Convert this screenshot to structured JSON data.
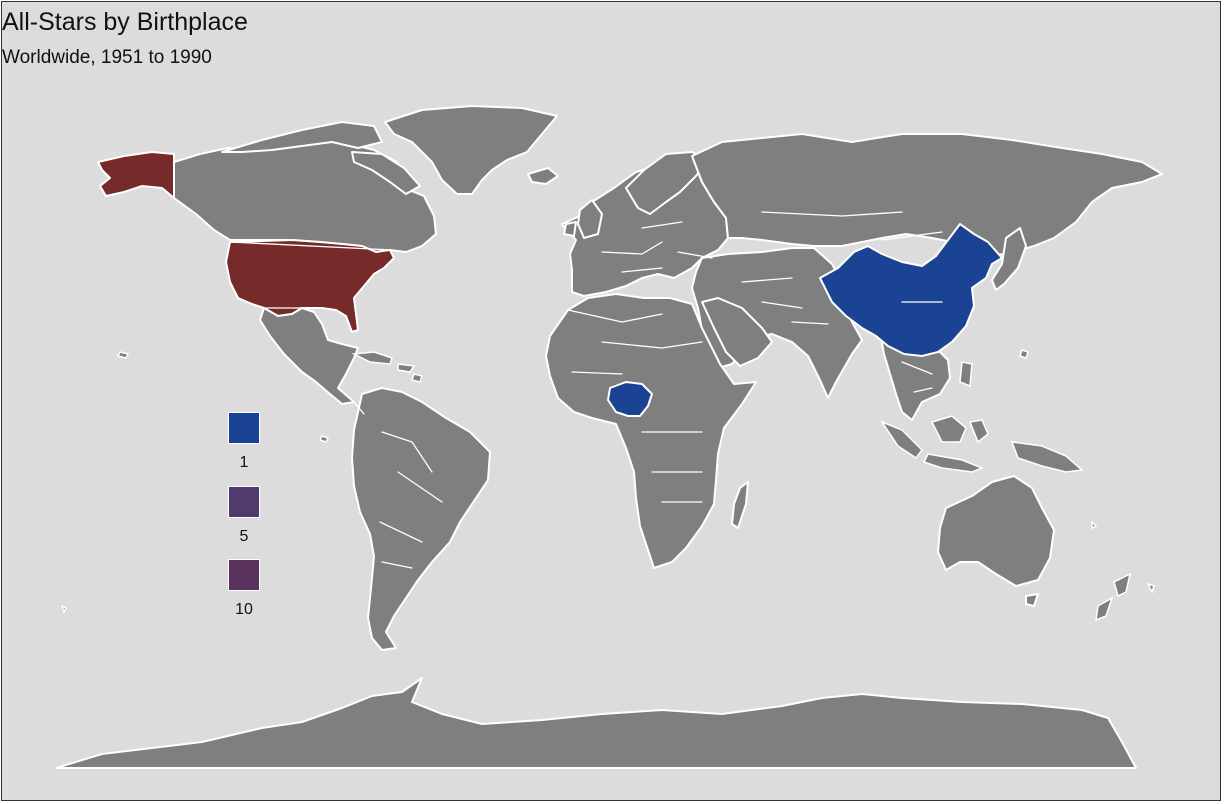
{
  "title": "All-Stars by Birthplace",
  "subtitle": "Worldwide, 1951 to 1990",
  "colors": {
    "background": "#dcdcdc",
    "land": "#7f7f7f",
    "border": "#ffffff",
    "level_1": "#1b4393",
    "level_5": "#533a6e",
    "level_10": "#5a325e",
    "usa": "#772a2a"
  },
  "legend": {
    "items": [
      {
        "label": "1",
        "color": "#1b4393"
      },
      {
        "label": "5",
        "color": "#533a6e"
      },
      {
        "label": "10",
        "color": "#5a325e"
      }
    ]
  },
  "chart_data": {
    "type": "choropleth",
    "regions": [
      {
        "country": "United States",
        "color": "#772a2a"
      },
      {
        "country": "China",
        "color": "#1b4393"
      },
      {
        "country": "Nigeria",
        "color": "#1b4393"
      }
    ],
    "legend_values": [
      1,
      5,
      10
    ]
  }
}
